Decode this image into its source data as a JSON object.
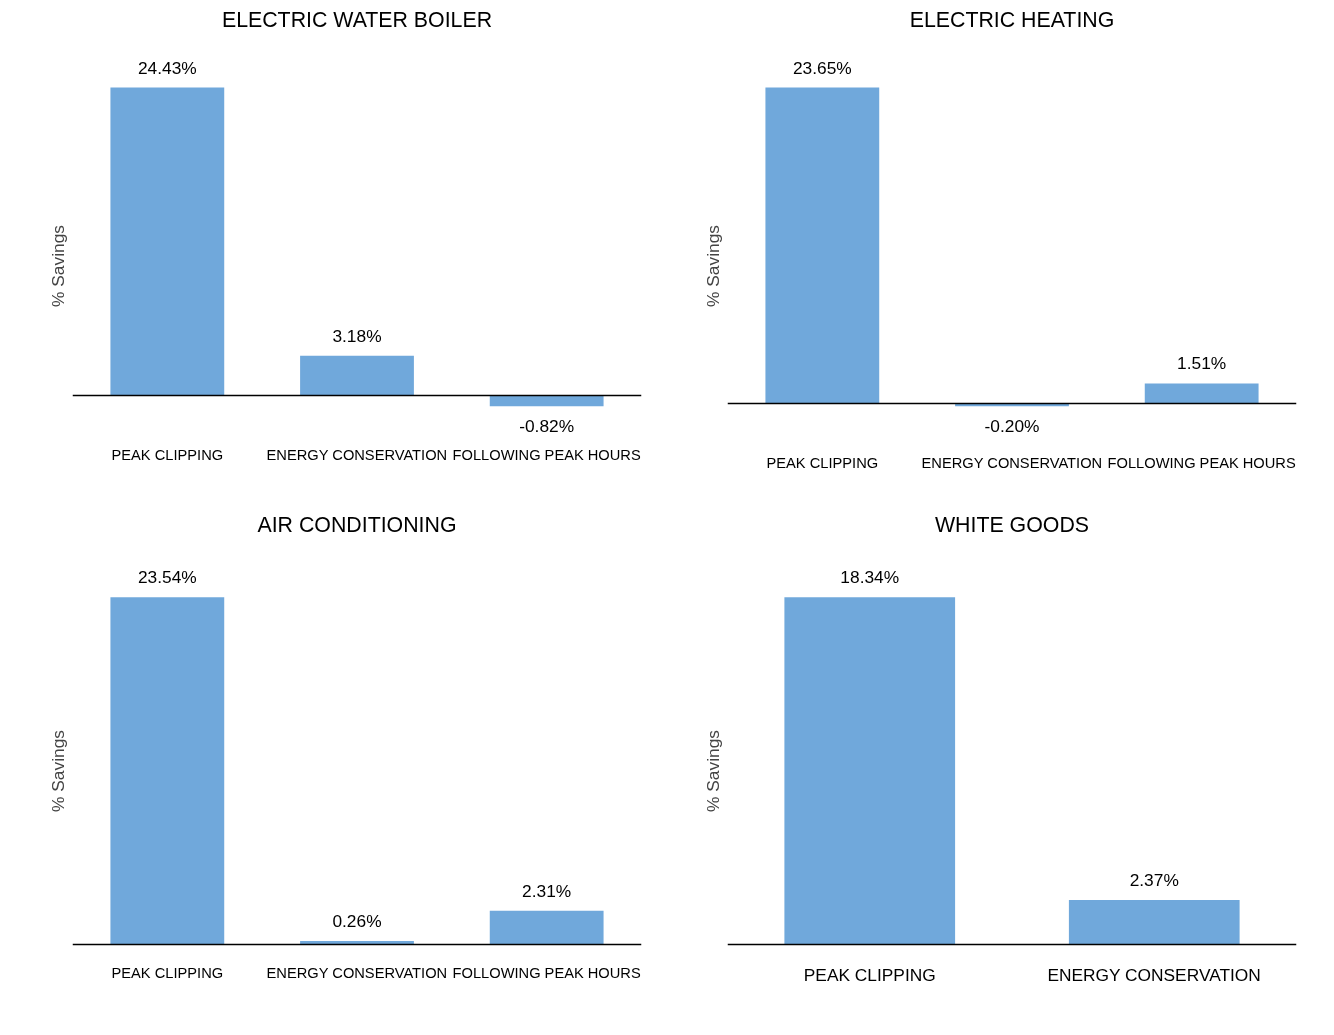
{
  "chart_data": [
    {
      "type": "bar",
      "title": "ELECTRIC WATER BOILER",
      "ylabel": "% Savings",
      "categories": [
        "PEAK CLIPPING",
        "ENERGY CONSERVATION",
        "FOLLOWING PEAK HOURS"
      ],
      "values": [
        24.43,
        3.18,
        -0.82
      ],
      "value_labels": [
        "24.43%",
        "3.18%",
        "-0.82%"
      ],
      "color": "#70a8db",
      "grid": false
    },
    {
      "type": "bar",
      "title": "ELECTRIC HEATING",
      "ylabel": "% Savings",
      "categories": [
        "PEAK CLIPPING",
        "ENERGY CONSERVATION",
        "FOLLOWING PEAK HOURS"
      ],
      "values": [
        23.65,
        -0.2,
        1.51
      ],
      "value_labels": [
        "23.65%",
        "-0.20%",
        "1.51%"
      ],
      "color": "#70a8db",
      "grid": false
    },
    {
      "type": "bar",
      "title": "AIR CONDITIONING",
      "ylabel": "% Savings",
      "categories": [
        "PEAK CLIPPING",
        "ENERGY CONSERVATION",
        "FOLLOWING PEAK HOURS"
      ],
      "values": [
        23.54,
        0.26,
        2.31
      ],
      "value_labels": [
        "23.54%",
        "0.26%",
        "2.31%"
      ],
      "color": "#70a8db",
      "grid": false
    },
    {
      "type": "bar",
      "title": "WHITE GOODS",
      "ylabel": "% Savings",
      "categories": [
        "PEAK CLIPPING",
        "ENERGY CONSERVATION"
      ],
      "values": [
        18.34,
        2.37
      ],
      "value_labels": [
        "18.34%",
        "2.37%"
      ],
      "color": "#70a8db",
      "grid": false
    }
  ]
}
